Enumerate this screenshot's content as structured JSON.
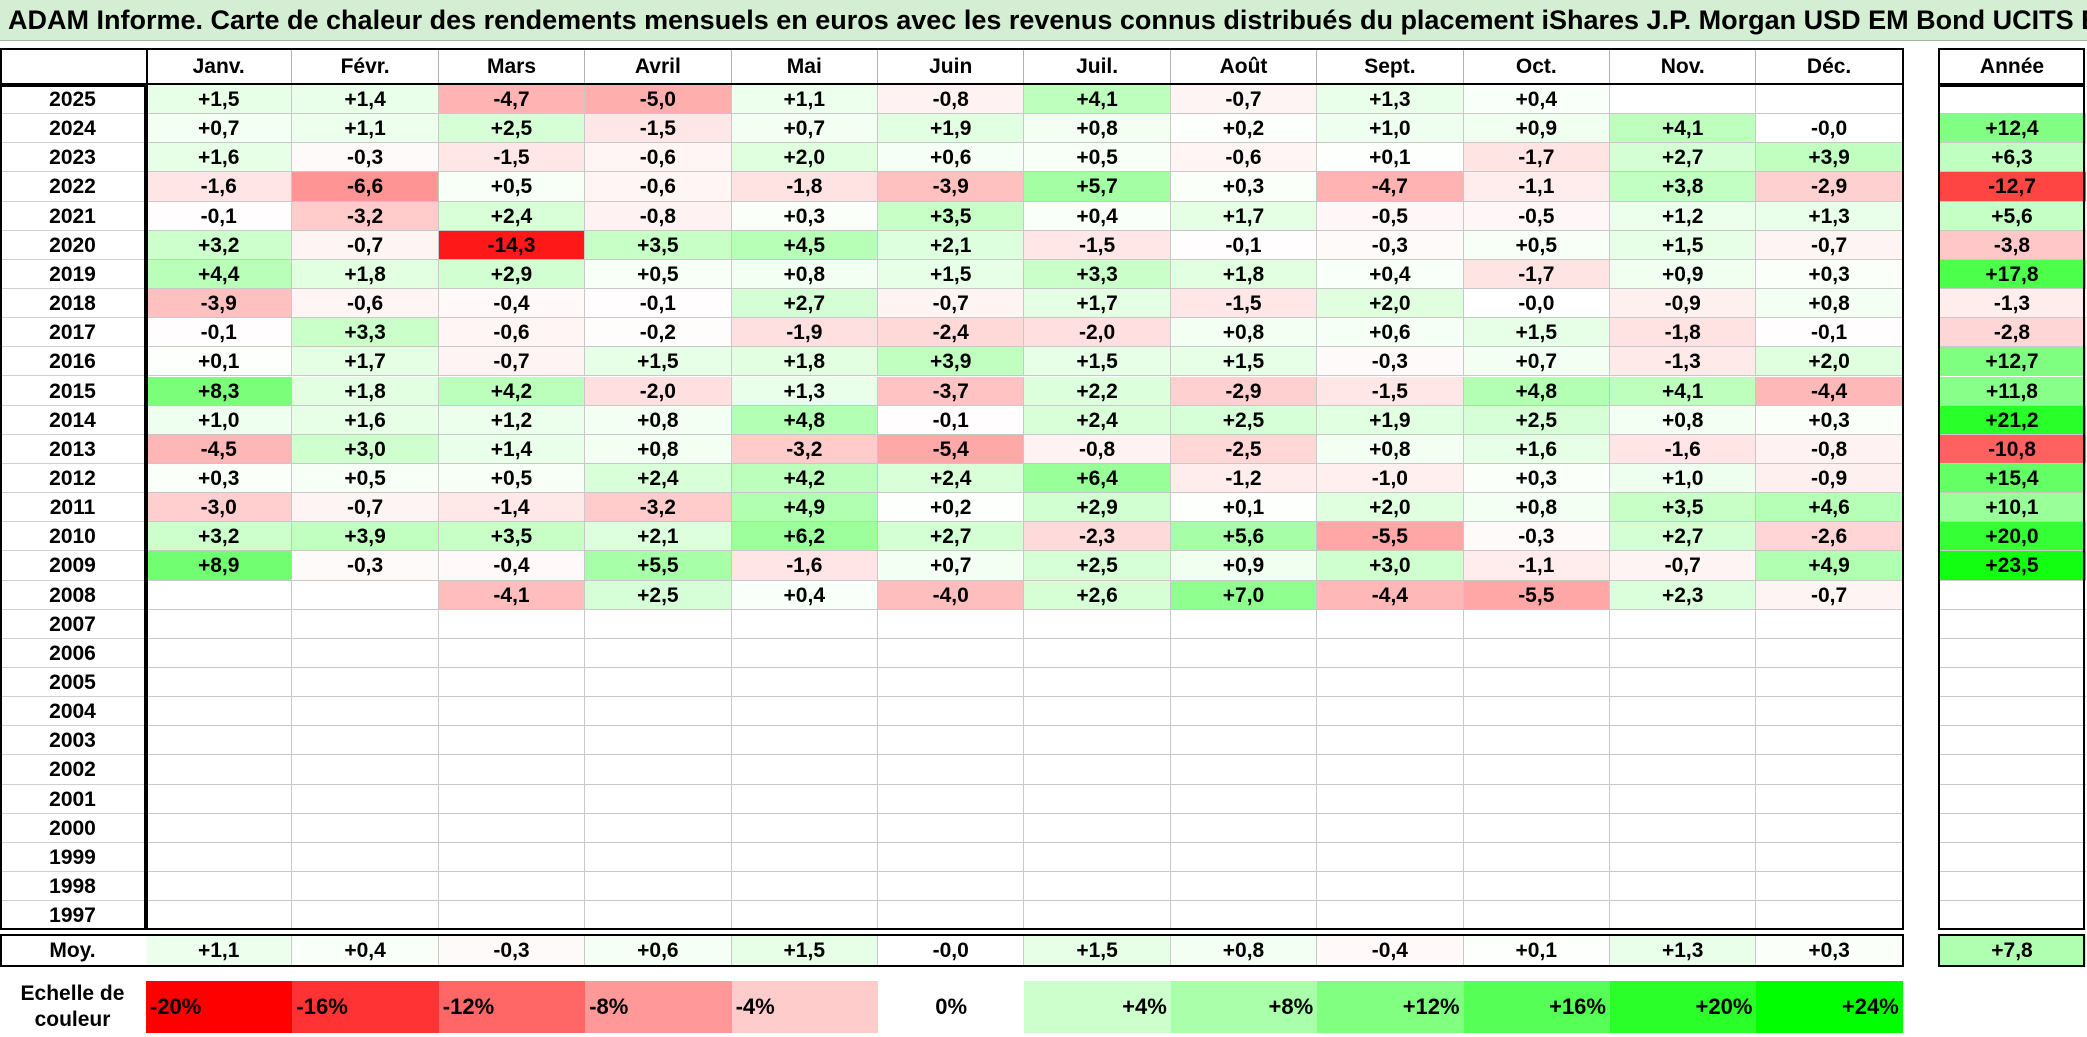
{
  "title": "ADAM Informe. Carte de chaleur des rendements mensuels en euros avec les revenus connus distribués du placement iShares J.P. Morgan USD EM Bond UCITS ETF USD Dist",
  "chart_data": {
    "type": "heatmap",
    "title": "ADAM Informe. Carte de chaleur des rendements mensuels en euros avec les revenus connus distribués du placement iShares J.P. Morgan USD EM Bond UCITS ETF USD Dist",
    "months": [
      "Janv.",
      "Févr.",
      "Mars",
      "Avril",
      "Mai",
      "Juin",
      "Juil.",
      "Août",
      "Sept.",
      "Oct.",
      "Nov.",
      "Déc."
    ],
    "year_header": "Année",
    "rows": [
      {
        "year": "2025",
        "values": [
          "+1,5",
          "+1,4",
          "-4,7",
          "-5,0",
          "+1,1",
          "-0,8",
          "+4,1",
          "-0,7",
          "+1,3",
          "+0,4",
          "",
          ""
        ],
        "annual": ""
      },
      {
        "year": "2024",
        "values": [
          "+0,7",
          "+1,1",
          "+2,5",
          "-1,5",
          "+0,7",
          "+1,9",
          "+0,8",
          "+0,2",
          "+1,0",
          "+0,9",
          "+4,1",
          "-0,0"
        ],
        "annual": "+12,4"
      },
      {
        "year": "2023",
        "values": [
          "+1,6",
          "-0,3",
          "-1,5",
          "-0,6",
          "+2,0",
          "+0,6",
          "+0,5",
          "-0,6",
          "+0,1",
          "-1,7",
          "+2,7",
          "+3,9"
        ],
        "annual": "+6,3"
      },
      {
        "year": "2022",
        "values": [
          "-1,6",
          "-6,6",
          "+0,5",
          "-0,6",
          "-1,8",
          "-3,9",
          "+5,7",
          "+0,3",
          "-4,7",
          "-1,1",
          "+3,8",
          "-2,9"
        ],
        "annual": "-12,7"
      },
      {
        "year": "2021",
        "values": [
          "-0,1",
          "-3,2",
          "+2,4",
          "-0,8",
          "+0,3",
          "+3,5",
          "+0,4",
          "+1,7",
          "-0,5",
          "-0,5",
          "+1,2",
          "+1,3"
        ],
        "annual": "+5,6"
      },
      {
        "year": "2020",
        "values": [
          "+3,2",
          "-0,7",
          "-14,3",
          "+3,5",
          "+4,5",
          "+2,1",
          "-1,5",
          "-0,1",
          "-0,3",
          "+0,5",
          "+1,5",
          "-0,7"
        ],
        "annual": "-3,8"
      },
      {
        "year": "2019",
        "values": [
          "+4,4",
          "+1,8",
          "+2,9",
          "+0,5",
          "+0,8",
          "+1,5",
          "+3,3",
          "+1,8",
          "+0,4",
          "-1,7",
          "+0,9",
          "+0,3"
        ],
        "annual": "+17,8"
      },
      {
        "year": "2018",
        "values": [
          "-3,9",
          "-0,6",
          "-0,4",
          "-0,1",
          "+2,7",
          "-0,7",
          "+1,7",
          "-1,5",
          "+2,0",
          "-0,0",
          "-0,9",
          "+0,8"
        ],
        "annual": "-1,3"
      },
      {
        "year": "2017",
        "values": [
          "-0,1",
          "+3,3",
          "-0,6",
          "-0,2",
          "-1,9",
          "-2,4",
          "-2,0",
          "+0,8",
          "+0,6",
          "+1,5",
          "-1,8",
          "-0,1"
        ],
        "annual": "-2,8"
      },
      {
        "year": "2016",
        "values": [
          "+0,1",
          "+1,7",
          "-0,7",
          "+1,5",
          "+1,8",
          "+3,9",
          "+1,5",
          "+1,5",
          "-0,3",
          "+0,7",
          "-1,3",
          "+2,0"
        ],
        "annual": "+12,7"
      },
      {
        "year": "2015",
        "values": [
          "+8,3",
          "+1,8",
          "+4,2",
          "-2,0",
          "+1,3",
          "-3,7",
          "+2,2",
          "-2,9",
          "-1,5",
          "+4,8",
          "+4,1",
          "-4,4"
        ],
        "annual": "+11,8"
      },
      {
        "year": "2014",
        "values": [
          "+1,0",
          "+1,6",
          "+1,2",
          "+0,8",
          "+4,8",
          "-0,1",
          "+2,4",
          "+2,5",
          "+1,9",
          "+2,5",
          "+0,8",
          "+0,3"
        ],
        "annual": "+21,2"
      },
      {
        "year": "2013",
        "values": [
          "-4,5",
          "+3,0",
          "+1,4",
          "+0,8",
          "-3,2",
          "-5,4",
          "-0,8",
          "-2,5",
          "+0,8",
          "+1,6",
          "-1,6",
          "-0,8"
        ],
        "annual": "-10,8"
      },
      {
        "year": "2012",
        "values": [
          "+0,3",
          "+0,5",
          "+0,5",
          "+2,4",
          "+4,2",
          "+2,4",
          "+6,4",
          "-1,2",
          "-1,0",
          "+0,3",
          "+1,0",
          "-0,9"
        ],
        "annual": "+15,4"
      },
      {
        "year": "2011",
        "values": [
          "-3,0",
          "-0,7",
          "-1,4",
          "-3,2",
          "+4,9",
          "+0,2",
          "+2,9",
          "+0,1",
          "+2,0",
          "+0,8",
          "+3,5",
          "+4,6"
        ],
        "annual": "+10,1"
      },
      {
        "year": "2010",
        "values": [
          "+3,2",
          "+3,9",
          "+3,5",
          "+2,1",
          "+6,2",
          "+2,7",
          "-2,3",
          "+5,6",
          "-5,5",
          "-0,3",
          "+2,7",
          "-2,6"
        ],
        "annual": "+20,0"
      },
      {
        "year": "2009",
        "values": [
          "+8,9",
          "-0,3",
          "-0,4",
          "+5,5",
          "-1,6",
          "+0,7",
          "+2,5",
          "+0,9",
          "+3,0",
          "-1,1",
          "-0,7",
          "+4,9"
        ],
        "annual": "+23,5"
      },
      {
        "year": "2008",
        "values": [
          "",
          "",
          "-4,1",
          "+2,5",
          "+0,4",
          "-4,0",
          "+2,6",
          "+7,0",
          "-4,4",
          "-5,5",
          "+2,3",
          "-0,7"
        ],
        "annual": ""
      },
      {
        "year": "2007",
        "values": [
          "",
          "",
          "",
          "",
          "",
          "",
          "",
          "",
          "",
          "",
          "",
          ""
        ],
        "annual": ""
      },
      {
        "year": "2006",
        "values": [
          "",
          "",
          "",
          "",
          "",
          "",
          "",
          "",
          "",
          "",
          "",
          ""
        ],
        "annual": ""
      },
      {
        "year": "2005",
        "values": [
          "",
          "",
          "",
          "",
          "",
          "",
          "",
          "",
          "",
          "",
          "",
          ""
        ],
        "annual": ""
      },
      {
        "year": "2004",
        "values": [
          "",
          "",
          "",
          "",
          "",
          "",
          "",
          "",
          "",
          "",
          "",
          ""
        ],
        "annual": ""
      },
      {
        "year": "2003",
        "values": [
          "",
          "",
          "",
          "",
          "",
          "",
          "",
          "",
          "",
          "",
          "",
          ""
        ],
        "annual": ""
      },
      {
        "year": "2002",
        "values": [
          "",
          "",
          "",
          "",
          "",
          "",
          "",
          "",
          "",
          "",
          "",
          ""
        ],
        "annual": ""
      },
      {
        "year": "2001",
        "values": [
          "",
          "",
          "",
          "",
          "",
          "",
          "",
          "",
          "",
          "",
          "",
          ""
        ],
        "annual": ""
      },
      {
        "year": "2000",
        "values": [
          "",
          "",
          "",
          "",
          "",
          "",
          "",
          "",
          "",
          "",
          "",
          ""
        ],
        "annual": ""
      },
      {
        "year": "1999",
        "values": [
          "",
          "",
          "",
          "",
          "",
          "",
          "",
          "",
          "",
          "",
          "",
          ""
        ],
        "annual": ""
      },
      {
        "year": "1998",
        "values": [
          "",
          "",
          "",
          "",
          "",
          "",
          "",
          "",
          "",
          "",
          "",
          ""
        ],
        "annual": ""
      },
      {
        "year": "1997",
        "values": [
          "",
          "",
          "",
          "",
          "",
          "",
          "",
          "",
          "",
          "",
          "",
          ""
        ],
        "annual": ""
      }
    ],
    "average": {
      "label": "Moy.",
      "values": [
        "+1,1",
        "+0,4",
        "-0,3",
        "+0,6",
        "+1,5",
        "-0,0",
        "+1,5",
        "+0,8",
        "-0,4",
        "+0,1",
        "+1,3",
        "+0,3"
      ],
      "annual": "+7,8"
    },
    "color_scale": {
      "label": "Echelle de couleur",
      "stops": [
        "-20%",
        "-16%",
        "-12%",
        "-8%",
        "-4%",
        "0%",
        "+4%",
        "+8%",
        "+12%",
        "+16%",
        "+20%",
        "+24%"
      ],
      "colors": [
        "#ff0000",
        "#ff3333",
        "#ff6666",
        "#ff9999",
        "#ffcccc",
        "#ffffff",
        "#ccffcc",
        "#aaffaa",
        "#80ff80",
        "#55ff55",
        "#2aff2a",
        "#00ff00"
      ]
    },
    "colors": {
      "negative": "#ff0000",
      "neutral": "#ffffff",
      "positive": "#00ff00",
      "title_background": "#d4eed4"
    }
  }
}
